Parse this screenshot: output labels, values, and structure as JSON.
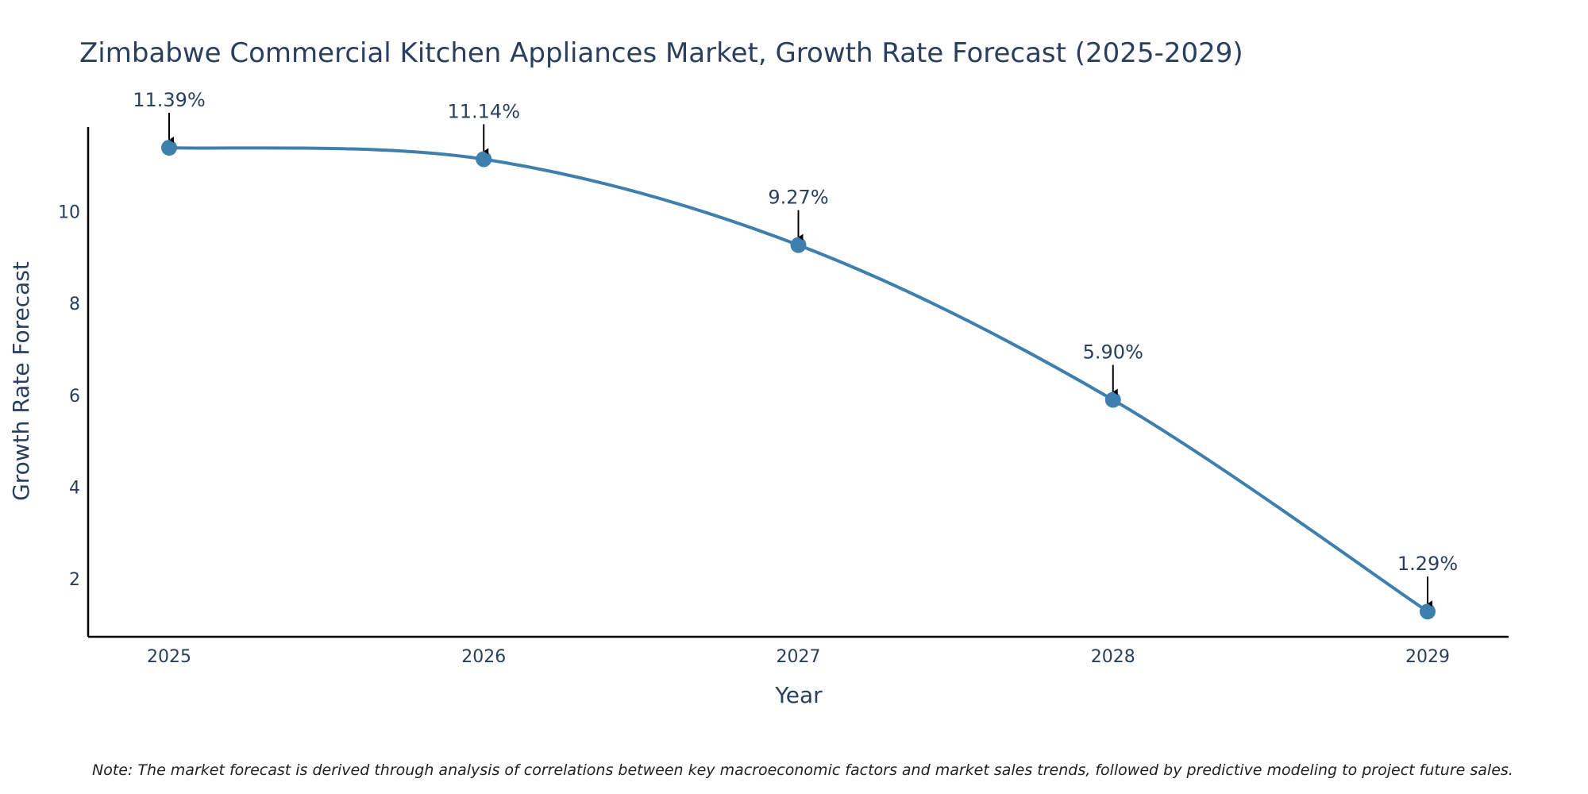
{
  "chart_data": {
    "type": "line",
    "title": "Zimbabwe Commercial Kitchen Appliances Market, Growth Rate Forecast (2025-2029)",
    "xlabel": "Year",
    "ylabel": "Growth Rate Forecast",
    "categories": [
      "2025",
      "2026",
      "2027",
      "2028",
      "2029"
    ],
    "series": [
      {
        "name": "Growth Rate Forecast",
        "values": [
          11.39,
          11.14,
          9.27,
          5.9,
          1.29
        ],
        "labels": [
          "11.39%",
          "11.14%",
          "9.27%",
          "5.90%",
          "1.29%"
        ]
      }
    ],
    "yticks": [
      2,
      4,
      6,
      8,
      10
    ],
    "ylim": [
      0.74,
      11.84
    ],
    "grid": false,
    "line_color": "#3f7fad",
    "marker_color": "#3f7fad",
    "axis_color": "#000000",
    "text_color": "#2a3f5f",
    "arrow_color": "#000000"
  },
  "note": "Note: The market forecast is derived through analysis of correlations between key macroeconomic factors and market sales trends, followed by predictive modeling to project future sales."
}
